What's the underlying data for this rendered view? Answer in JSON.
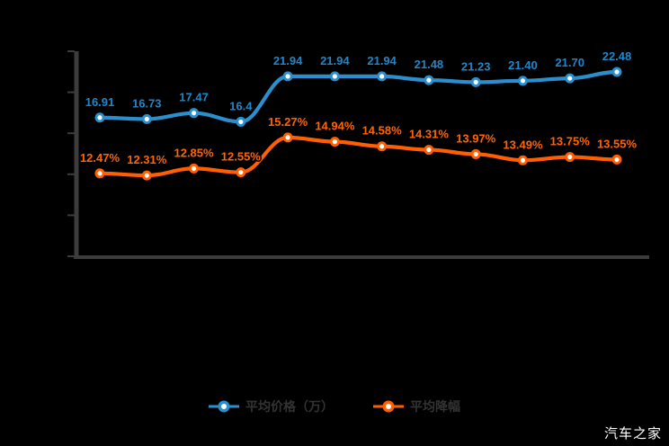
{
  "watermark": {
    "text": "汽车之家"
  },
  "legend": {
    "items": [
      {
        "label": "平均价格（万）",
        "color": "#2b8fce"
      },
      {
        "label": "平均降幅",
        "color": "#ff5f00"
      }
    ]
  },
  "chart_data": {
    "type": "line",
    "title": "",
    "xlabel": "",
    "ylabel": "",
    "x_count": 12,
    "grid": false,
    "legend_position": "bottom",
    "axis_color": "#3c3c3c",
    "y_axis_ticks_left": [
      0,
      5,
      10,
      15,
      20,
      25
    ],
    "ylim_left": [
      0,
      25
    ],
    "ylim_right": [
      6,
      22
    ],
    "series": [
      {
        "name": "平均价格（万）",
        "axis": "left",
        "color": "#2b8fce",
        "label_color": "#2186c8",
        "values": [
          16.91,
          16.73,
          17.47,
          16.4,
          21.94,
          21.94,
          21.94,
          21.48,
          21.23,
          21.4,
          21.7,
          22.48
        ],
        "labels": [
          "16.91",
          "16.73",
          "17.47",
          "16.4",
          "21.94",
          "21.94",
          "21.94",
          "21.48",
          "21.23",
          "21.40",
          "21.70",
          "22.48"
        ]
      },
      {
        "name": "平均降幅",
        "axis": "right",
        "color": "#ff5f00",
        "label_color": "#ff6400",
        "values": [
          12.47,
          12.31,
          12.85,
          12.55,
          15.27,
          14.94,
          14.58,
          14.31,
          13.97,
          13.49,
          13.75,
          13.55
        ],
        "labels": [
          "12.47%",
          "12.31%",
          "12.85%",
          "12.55%",
          "15.27%",
          "14.94%",
          "14.58%",
          "14.31%",
          "13.97%",
          "13.49%",
          "13.75%",
          "13.55%"
        ]
      }
    ]
  }
}
